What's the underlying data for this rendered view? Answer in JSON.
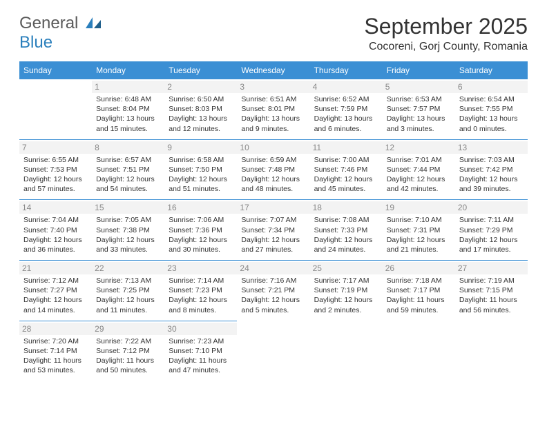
{
  "logo": {
    "line1": "General",
    "line2": "Blue"
  },
  "title": "September 2025",
  "location": "Cocoreni, Gorj County, Romania",
  "colors": {
    "header_bg": "#3b8fd4",
    "header_fg": "#ffffff",
    "daynum_bg": "#f3f3f3",
    "daynum_fg": "#888888",
    "rule": "#3b8fd4",
    "text": "#333333",
    "logo_gray": "#5a5a5a",
    "logo_blue": "#2a7fbc",
    "bg": "#ffffff"
  },
  "weekdays": [
    "Sunday",
    "Monday",
    "Tuesday",
    "Wednesday",
    "Thursday",
    "Friday",
    "Saturday"
  ],
  "weeks": [
    [
      {
        "day": "",
        "sunrise": "",
        "sunset": "",
        "daylight": "",
        "empty": true
      },
      {
        "day": "1",
        "sunrise": "Sunrise: 6:48 AM",
        "sunset": "Sunset: 8:04 PM",
        "daylight": "Daylight: 13 hours and 15 minutes."
      },
      {
        "day": "2",
        "sunrise": "Sunrise: 6:50 AM",
        "sunset": "Sunset: 8:03 PM",
        "daylight": "Daylight: 13 hours and 12 minutes."
      },
      {
        "day": "3",
        "sunrise": "Sunrise: 6:51 AM",
        "sunset": "Sunset: 8:01 PM",
        "daylight": "Daylight: 13 hours and 9 minutes."
      },
      {
        "day": "4",
        "sunrise": "Sunrise: 6:52 AM",
        "sunset": "Sunset: 7:59 PM",
        "daylight": "Daylight: 13 hours and 6 minutes."
      },
      {
        "day": "5",
        "sunrise": "Sunrise: 6:53 AM",
        "sunset": "Sunset: 7:57 PM",
        "daylight": "Daylight: 13 hours and 3 minutes."
      },
      {
        "day": "6",
        "sunrise": "Sunrise: 6:54 AM",
        "sunset": "Sunset: 7:55 PM",
        "daylight": "Daylight: 13 hours and 0 minutes."
      }
    ],
    [
      {
        "day": "7",
        "sunrise": "Sunrise: 6:55 AM",
        "sunset": "Sunset: 7:53 PM",
        "daylight": "Daylight: 12 hours and 57 minutes."
      },
      {
        "day": "8",
        "sunrise": "Sunrise: 6:57 AM",
        "sunset": "Sunset: 7:51 PM",
        "daylight": "Daylight: 12 hours and 54 minutes."
      },
      {
        "day": "9",
        "sunrise": "Sunrise: 6:58 AM",
        "sunset": "Sunset: 7:50 PM",
        "daylight": "Daylight: 12 hours and 51 minutes."
      },
      {
        "day": "10",
        "sunrise": "Sunrise: 6:59 AM",
        "sunset": "Sunset: 7:48 PM",
        "daylight": "Daylight: 12 hours and 48 minutes."
      },
      {
        "day": "11",
        "sunrise": "Sunrise: 7:00 AM",
        "sunset": "Sunset: 7:46 PM",
        "daylight": "Daylight: 12 hours and 45 minutes."
      },
      {
        "day": "12",
        "sunrise": "Sunrise: 7:01 AM",
        "sunset": "Sunset: 7:44 PM",
        "daylight": "Daylight: 12 hours and 42 minutes."
      },
      {
        "day": "13",
        "sunrise": "Sunrise: 7:03 AM",
        "sunset": "Sunset: 7:42 PM",
        "daylight": "Daylight: 12 hours and 39 minutes."
      }
    ],
    [
      {
        "day": "14",
        "sunrise": "Sunrise: 7:04 AM",
        "sunset": "Sunset: 7:40 PM",
        "daylight": "Daylight: 12 hours and 36 minutes."
      },
      {
        "day": "15",
        "sunrise": "Sunrise: 7:05 AM",
        "sunset": "Sunset: 7:38 PM",
        "daylight": "Daylight: 12 hours and 33 minutes."
      },
      {
        "day": "16",
        "sunrise": "Sunrise: 7:06 AM",
        "sunset": "Sunset: 7:36 PM",
        "daylight": "Daylight: 12 hours and 30 minutes."
      },
      {
        "day": "17",
        "sunrise": "Sunrise: 7:07 AM",
        "sunset": "Sunset: 7:34 PM",
        "daylight": "Daylight: 12 hours and 27 minutes."
      },
      {
        "day": "18",
        "sunrise": "Sunrise: 7:08 AM",
        "sunset": "Sunset: 7:33 PM",
        "daylight": "Daylight: 12 hours and 24 minutes."
      },
      {
        "day": "19",
        "sunrise": "Sunrise: 7:10 AM",
        "sunset": "Sunset: 7:31 PM",
        "daylight": "Daylight: 12 hours and 21 minutes."
      },
      {
        "day": "20",
        "sunrise": "Sunrise: 7:11 AM",
        "sunset": "Sunset: 7:29 PM",
        "daylight": "Daylight: 12 hours and 17 minutes."
      }
    ],
    [
      {
        "day": "21",
        "sunrise": "Sunrise: 7:12 AM",
        "sunset": "Sunset: 7:27 PM",
        "daylight": "Daylight: 12 hours and 14 minutes."
      },
      {
        "day": "22",
        "sunrise": "Sunrise: 7:13 AM",
        "sunset": "Sunset: 7:25 PM",
        "daylight": "Daylight: 12 hours and 11 minutes."
      },
      {
        "day": "23",
        "sunrise": "Sunrise: 7:14 AM",
        "sunset": "Sunset: 7:23 PM",
        "daylight": "Daylight: 12 hours and 8 minutes."
      },
      {
        "day": "24",
        "sunrise": "Sunrise: 7:16 AM",
        "sunset": "Sunset: 7:21 PM",
        "daylight": "Daylight: 12 hours and 5 minutes."
      },
      {
        "day": "25",
        "sunrise": "Sunrise: 7:17 AM",
        "sunset": "Sunset: 7:19 PM",
        "daylight": "Daylight: 12 hours and 2 minutes."
      },
      {
        "day": "26",
        "sunrise": "Sunrise: 7:18 AM",
        "sunset": "Sunset: 7:17 PM",
        "daylight": "Daylight: 11 hours and 59 minutes."
      },
      {
        "day": "27",
        "sunrise": "Sunrise: 7:19 AM",
        "sunset": "Sunset: 7:15 PM",
        "daylight": "Daylight: 11 hours and 56 minutes."
      }
    ],
    [
      {
        "day": "28",
        "sunrise": "Sunrise: 7:20 AM",
        "sunset": "Sunset: 7:14 PM",
        "daylight": "Daylight: 11 hours and 53 minutes."
      },
      {
        "day": "29",
        "sunrise": "Sunrise: 7:22 AM",
        "sunset": "Sunset: 7:12 PM",
        "daylight": "Daylight: 11 hours and 50 minutes."
      },
      {
        "day": "30",
        "sunrise": "Sunrise: 7:23 AM",
        "sunset": "Sunset: 7:10 PM",
        "daylight": "Daylight: 11 hours and 47 minutes."
      },
      {
        "day": "",
        "sunrise": "",
        "sunset": "",
        "daylight": "",
        "empty": true
      },
      {
        "day": "",
        "sunrise": "",
        "sunset": "",
        "daylight": "",
        "empty": true
      },
      {
        "day": "",
        "sunrise": "",
        "sunset": "",
        "daylight": "",
        "empty": true
      },
      {
        "day": "",
        "sunrise": "",
        "sunset": "",
        "daylight": "",
        "empty": true
      }
    ]
  ]
}
